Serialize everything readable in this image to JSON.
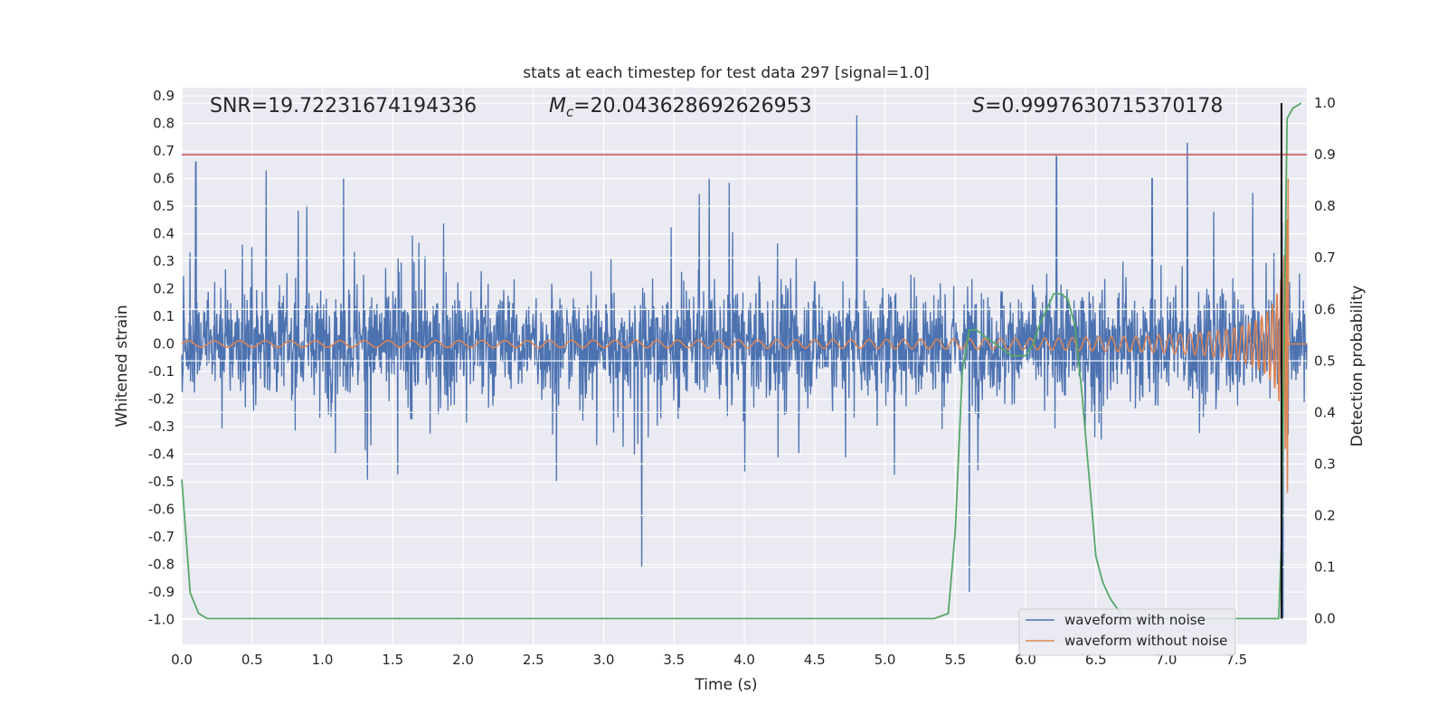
{
  "chart_data": {
    "type": "line",
    "title": "stats at each timestep for test data 297 [signal=1.0]",
    "xlabel": "Time (s)",
    "ylabel": "Whitened strain",
    "ylabel_right": "Detection probability",
    "xlim": [
      0.0,
      8.0
    ],
    "ylim": [
      -1.09,
      0.93
    ],
    "ylim_right": [
      -0.05,
      1.03
    ],
    "x_ticks": [
      "0.0",
      "0.5",
      "1.0",
      "1.5",
      "2.0",
      "2.5",
      "3.0",
      "3.5",
      "4.0",
      "4.5",
      "5.0",
      "5.5",
      "6.0",
      "6.5",
      "7.0",
      "7.5"
    ],
    "y_ticks": [
      "0.9",
      "0.8",
      "0.7",
      "0.6",
      "0.5",
      "0.4",
      "0.3",
      "0.2",
      "0.1",
      "0.0",
      "-0.1",
      "-0.2",
      "-0.3",
      "-0.4",
      "-0.5",
      "-0.6",
      "-0.7",
      "-0.8",
      "-0.9",
      "-1.0"
    ],
    "y_ticks_right": [
      "1.0",
      "0.9",
      "0.8",
      "0.7",
      "0.6",
      "0.5",
      "0.4",
      "0.3",
      "0.2",
      "0.1",
      "0.0"
    ],
    "annotations": {
      "snr": "SNR=19.72231674194336",
      "mc_prefix": "M",
      "mc_sub": "c",
      "mc_value": "=20.043628692626953",
      "s_prefix": "S",
      "s_value": "=0.9997630715370178"
    },
    "threshold_line": {
      "y_right": 0.9,
      "color": "#c44e52"
    },
    "marker_line": {
      "x": 7.82,
      "y_right_range": [
        0.0,
        1.0
      ],
      "color": "#000000"
    },
    "series": [
      {
        "name": "waveform with noise",
        "axis": "left",
        "color": "#4c72b0",
        "description": "whitened noisy strain, approx uniform amplitude",
        "envelope": {
          "typical_max": 0.45,
          "typical_min": -0.45,
          "peak_max": 0.83,
          "peak_min": -1.0
        },
        "peaks": [
          [
            0.1,
            0.66
          ],
          [
            0.6,
            0.63
          ],
          [
            1.15,
            0.6
          ],
          [
            3.27,
            -0.81
          ],
          [
            3.75,
            0.6
          ],
          [
            4.8,
            0.83
          ],
          [
            5.6,
            -0.9
          ],
          [
            6.22,
            0.68
          ],
          [
            6.9,
            0.6
          ],
          [
            7.15,
            0.73
          ],
          [
            7.83,
            -1.0
          ]
        ]
      },
      {
        "name": "waveform without noise",
        "axis": "left",
        "color": "#dd8452",
        "description": "chirp signal, amplitude grows toward merger near 7.85 s",
        "chirp": {
          "start_amp": 0.008,
          "peak_amp": 0.77,
          "merger_t": 7.87,
          "end_t": 7.95
        }
      },
      {
        "name": "Detection probability",
        "axis": "right",
        "color": "#55a868",
        "x": [
          0.0,
          0.06,
          0.12,
          0.18,
          0.5,
          1.0,
          2.0,
          3.0,
          4.0,
          5.0,
          5.35,
          5.45,
          5.5,
          5.55,
          5.6,
          5.65,
          5.7,
          5.8,
          5.9,
          6.0,
          6.05,
          6.1,
          6.15,
          6.2,
          6.25,
          6.3,
          6.35,
          6.4,
          6.45,
          6.5,
          6.55,
          6.6,
          6.7,
          7.0,
          7.5,
          7.78,
          7.8,
          7.82,
          7.84,
          7.86,
          7.9,
          7.96
        ],
        "values": [
          0.27,
          0.05,
          0.01,
          0.0,
          0.0,
          0.0,
          0.0,
          0.0,
          0.0,
          0.0,
          0.0,
          0.01,
          0.17,
          0.48,
          0.56,
          0.56,
          0.55,
          0.53,
          0.51,
          0.51,
          0.53,
          0.57,
          0.6,
          0.63,
          0.63,
          0.62,
          0.57,
          0.44,
          0.28,
          0.12,
          0.07,
          0.04,
          0.0,
          0.0,
          0.0,
          0.0,
          0.0,
          0.15,
          0.57,
          0.97,
          0.99,
          1.0
        ]
      }
    ],
    "legend": {
      "placement": "lower-right",
      "entries": [
        {
          "label": "waveform with noise",
          "color": "#4c72b0"
        },
        {
          "label": "waveform without noise",
          "color": "#dd8452"
        }
      ]
    },
    "style": {
      "plot_bg": "#eaeaf2",
      "grid_color": "#ffffff"
    }
  }
}
